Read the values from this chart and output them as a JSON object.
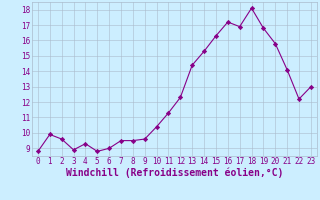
{
  "x": [
    0,
    1,
    2,
    3,
    4,
    5,
    6,
    7,
    8,
    9,
    10,
    11,
    12,
    13,
    14,
    15,
    16,
    17,
    18,
    19,
    20,
    21,
    22,
    23
  ],
  "y": [
    8.8,
    9.9,
    9.6,
    8.9,
    9.3,
    8.8,
    9.0,
    9.5,
    9.5,
    9.6,
    10.4,
    11.3,
    12.3,
    14.4,
    15.3,
    16.3,
    17.2,
    16.9,
    18.1,
    16.8,
    15.8,
    14.1,
    12.2,
    13.0
  ],
  "line_color": "#880088",
  "marker": "D",
  "marker_size": 2.2,
  "bg_color": "#cceeff",
  "grid_color": "#aabbcc",
  "xlabel": "Windchill (Refroidissement éolien,°C)",
  "ylim": [
    8.5,
    18.5
  ],
  "xlim": [
    -0.5,
    23.5
  ],
  "yticks": [
    9,
    10,
    11,
    12,
    13,
    14,
    15,
    16,
    17,
    18
  ],
  "xticks": [
    0,
    1,
    2,
    3,
    4,
    5,
    6,
    7,
    8,
    9,
    10,
    11,
    12,
    13,
    14,
    15,
    16,
    17,
    18,
    19,
    20,
    21,
    22,
    23
  ],
  "tick_fontsize": 5.5,
  "xlabel_fontsize": 7.0
}
